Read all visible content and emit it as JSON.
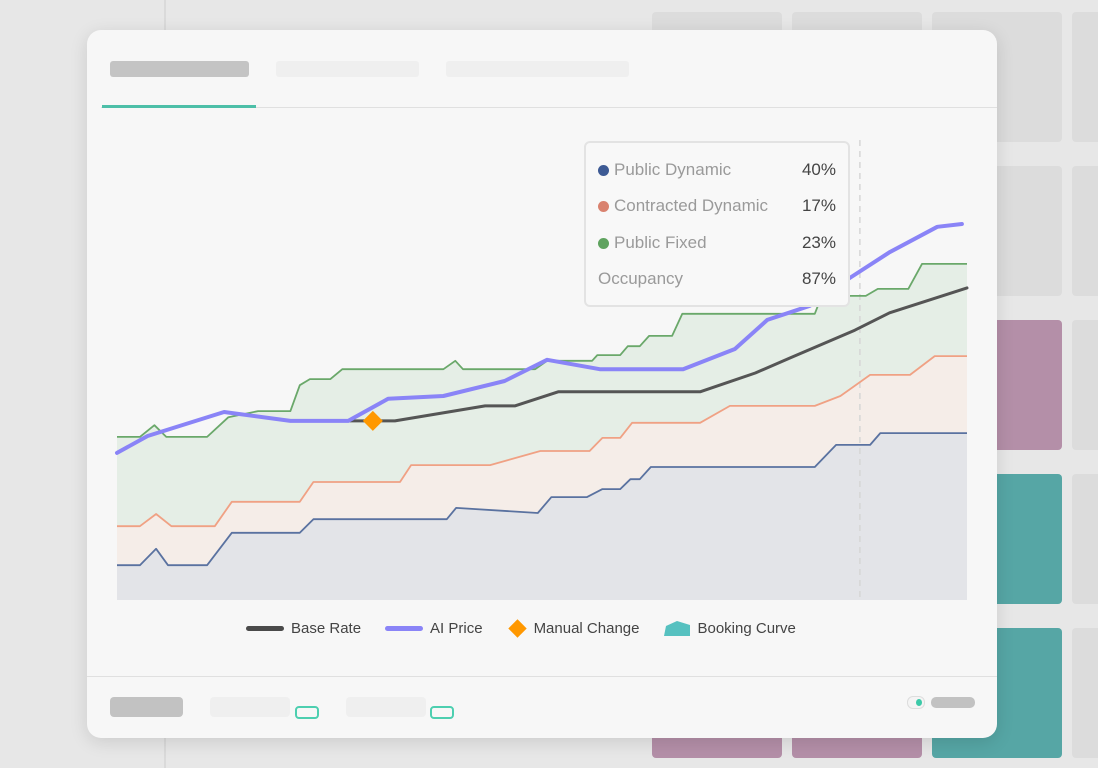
{
  "tooltip": {
    "rows": [
      {
        "label": "Public Dynamic",
        "value": "40%",
        "color": "#3d5a94"
      },
      {
        "label": "Contracted Dynamic",
        "value": "17%",
        "color": "#d9826f"
      },
      {
        "label": "Public Fixed",
        "value": "23%",
        "color": "#5fa35f"
      },
      {
        "label": "Occupancy",
        "value": "87%"
      }
    ]
  },
  "legend": {
    "base_rate": "Base Rate",
    "ai_price": "AI Price",
    "manual_change": "Manual Change",
    "booking_curve": "Booking Curve"
  },
  "colors": {
    "accent": "#4dbfa8",
    "base_rate": "#555555",
    "ai_price": "#8a84f7",
    "manual_change": "#ff9800",
    "booking_curve": "#56c1c0"
  },
  "chart_data": {
    "type": "area",
    "title": "",
    "xlabel": "",
    "ylabel": "",
    "xlim": [
      0,
      100
    ],
    "ylim": [
      0,
      100
    ],
    "grid": false,
    "legend_position": "bottom",
    "cursor_x": 87.4,
    "stacked_areas": [
      {
        "name": "Public Dynamic",
        "color": "#5a72a0",
        "fill": "#e3e4e8",
        "points": [
          [
            0,
            7.4
          ],
          [
            2.7,
            7.4
          ],
          [
            4.6,
            10.9
          ],
          [
            6.0,
            7.4
          ],
          [
            10.6,
            7.4
          ],
          [
            13.5,
            14.3
          ],
          [
            21.5,
            14.3
          ],
          [
            23.1,
            17.2
          ],
          [
            38.8,
            17.2
          ],
          [
            39.9,
            19.6
          ],
          [
            49.5,
            18.5
          ],
          [
            51.1,
            21.9
          ],
          [
            55.3,
            21.9
          ],
          [
            57.1,
            23.6
          ],
          [
            59.2,
            23.6
          ],
          [
            60.4,
            25.7
          ],
          [
            61.5,
            25.7
          ],
          [
            62.8,
            28.3
          ],
          [
            82.1,
            28.3
          ],
          [
            84.6,
            33.0
          ],
          [
            88.6,
            33.0
          ],
          [
            89.8,
            35.5
          ],
          [
            100,
            35.5
          ]
        ]
      },
      {
        "name": "Contracted Dynamic",
        "color": "#f0a184",
        "fill": "#f5ede8",
        "points": [
          [
            0,
            15.7
          ],
          [
            2.7,
            15.7
          ],
          [
            4.6,
            18.3
          ],
          [
            6.4,
            15.7
          ],
          [
            11.5,
            15.7
          ],
          [
            13.5,
            20.9
          ],
          [
            21.5,
            20.9
          ],
          [
            23.1,
            25.1
          ],
          [
            33.3,
            25.1
          ],
          [
            34.6,
            28.7
          ],
          [
            43.9,
            28.7
          ],
          [
            49.8,
            31.7
          ],
          [
            55.6,
            31.7
          ],
          [
            57.1,
            34.5
          ],
          [
            59.2,
            34.5
          ],
          [
            60.6,
            37.7
          ],
          [
            68.6,
            37.7
          ],
          [
            72.1,
            41.3
          ],
          [
            82.1,
            41.3
          ],
          [
            85.1,
            43.4
          ],
          [
            88.6,
            47.9
          ],
          [
            93.3,
            47.9
          ],
          [
            96.2,
            51.9
          ],
          [
            100,
            51.9
          ]
        ]
      },
      {
        "name": "Public Fixed",
        "color": "#6aa86a",
        "fill": "#e5eee6",
        "points": [
          [
            0,
            34.7
          ],
          [
            2.7,
            34.7
          ],
          [
            4.4,
            37.2
          ],
          [
            5.8,
            34.7
          ],
          [
            10.6,
            34.7
          ],
          [
            13.1,
            38.9
          ],
          [
            16.6,
            40.2
          ],
          [
            20.4,
            40.2
          ],
          [
            21.5,
            45.7
          ],
          [
            22.7,
            47.0
          ],
          [
            25.1,
            47.0
          ],
          [
            26.5,
            49.1
          ],
          [
            38.4,
            49.1
          ],
          [
            39.8,
            50.9
          ],
          [
            40.7,
            49.1
          ],
          [
            49.2,
            49.1
          ],
          [
            50.6,
            50.9
          ],
          [
            55.9,
            50.9
          ],
          [
            56.5,
            52.1
          ],
          [
            59.2,
            52.1
          ],
          [
            60.1,
            54.0
          ],
          [
            61.5,
            54.0
          ],
          [
            62.6,
            56.2
          ],
          [
            65.3,
            56.2
          ],
          [
            66.5,
            60.9
          ],
          [
            82.1,
            60.9
          ],
          [
            82.9,
            64.7
          ],
          [
            88.1,
            64.7
          ],
          [
            89.5,
            66.2
          ],
          [
            93.1,
            66.2
          ],
          [
            94.7,
            71.5
          ],
          [
            100,
            71.5
          ]
        ]
      }
    ],
    "series": [
      {
        "name": "Base Rate",
        "color": "#555555",
        "points": [
          [
            27.4,
            38.1
          ],
          [
            32.7,
            38.1
          ],
          [
            43.3,
            41.3
          ],
          [
            46.8,
            41.3
          ],
          [
            51.9,
            44.3
          ],
          [
            68.6,
            44.3
          ],
          [
            75.1,
            48.3
          ],
          [
            79.2,
            51.5
          ],
          [
            86.8,
            57.4
          ],
          [
            90.9,
            61.1
          ],
          [
            100,
            66.4
          ]
        ]
      },
      {
        "name": "AI Price",
        "color": "#8a84f7",
        "points": [
          [
            0,
            31.3
          ],
          [
            3.6,
            34.9
          ],
          [
            12.6,
            40.0
          ],
          [
            20.4,
            38.1
          ],
          [
            27.2,
            38.1
          ],
          [
            31.9,
            42.8
          ],
          [
            38.4,
            43.4
          ],
          [
            45.6,
            46.6
          ],
          [
            50.6,
            51.1
          ],
          [
            56.8,
            49.1
          ],
          [
            66.6,
            49.1
          ],
          [
            72.7,
            53.4
          ],
          [
            76.5,
            59.6
          ],
          [
            81.5,
            62.6
          ],
          [
            86.2,
            68.5
          ],
          [
            90.9,
            74.0
          ],
          [
            96.5,
            79.4
          ],
          [
            99.4,
            80.0
          ]
        ]
      }
    ],
    "markers": [
      {
        "name": "Manual Change",
        "x": 30.1,
        "y": 38.1,
        "color": "#ff9800"
      }
    ]
  }
}
